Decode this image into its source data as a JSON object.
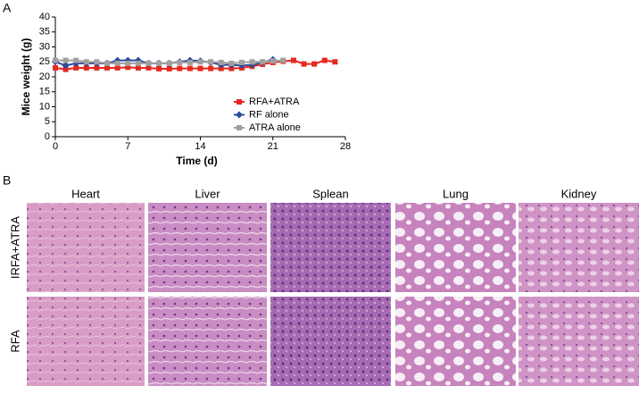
{
  "panel_labels": [
    "A",
    "B"
  ],
  "chart_data": {
    "type": "line",
    "xlabel": "Time (d)",
    "ylabel": "Mice weight (g)",
    "xlim": [
      0,
      28
    ],
    "xticks": [
      0,
      7,
      14,
      21,
      28
    ],
    "ylim": [
      0,
      40
    ],
    "yticks": [
      0,
      5,
      10,
      15,
      20,
      25,
      30,
      35,
      40
    ],
    "legend": "lower right",
    "series": [
      {
        "name": "RFA+ATRA",
        "color": "#e8281e",
        "marker": "square",
        "x": [
          0,
          1,
          2,
          3,
          4,
          5,
          6,
          7,
          8,
          9,
          10,
          11,
          12,
          13,
          14,
          15,
          16,
          17,
          18,
          19,
          20,
          21,
          22,
          23,
          24,
          25,
          26,
          27
        ],
        "values": [
          23,
          22.5,
          23,
          23,
          23,
          23,
          23,
          23.2,
          23,
          23,
          22.7,
          22.7,
          22.8,
          22.8,
          22.8,
          22.8,
          22.8,
          22.8,
          23,
          23.5,
          24.2,
          24.8,
          25.2,
          25.5,
          24.3,
          24.3,
          25.5,
          25
        ]
      },
      {
        "name": "RF alone",
        "color": "#2e4c9a",
        "marker": "diamond",
        "x": [
          0,
          1,
          2,
          3,
          4,
          5,
          6,
          7,
          8,
          9,
          10,
          11,
          12,
          13,
          14,
          15,
          16,
          17,
          18,
          19,
          20,
          21
        ],
        "values": [
          25,
          23.8,
          24.5,
          24.5,
          24.5,
          24.5,
          25.5,
          25.5,
          25.5,
          24.5,
          24.5,
          24.5,
          25,
          25.5,
          25.3,
          24.8,
          24,
          24,
          23.8,
          24,
          24.8,
          25.8
        ]
      },
      {
        "name": "ATRA alone",
        "color": "#a0a0a0",
        "marker": "square",
        "x": [
          0,
          1,
          2,
          3,
          4,
          5,
          6,
          7,
          8,
          9,
          10,
          11,
          12,
          13,
          14,
          15,
          16,
          17,
          18,
          19,
          20,
          21,
          22
        ],
        "values": [
          25.5,
          25.5,
          25.5,
          25,
          25,
          24.5,
          24.5,
          24.5,
          24.5,
          24.5,
          24.5,
          24.5,
          24.8,
          24.8,
          25,
          25,
          24.8,
          24.5,
          24.8,
          25,
          25,
          25.3,
          25.5
        ]
      }
    ]
  },
  "histology": {
    "columns": [
      "Heart",
      "Liver",
      "Splean",
      "Lung",
      "Kidney"
    ],
    "rows": [
      "IRFA+ATRA",
      "RFA"
    ]
  }
}
